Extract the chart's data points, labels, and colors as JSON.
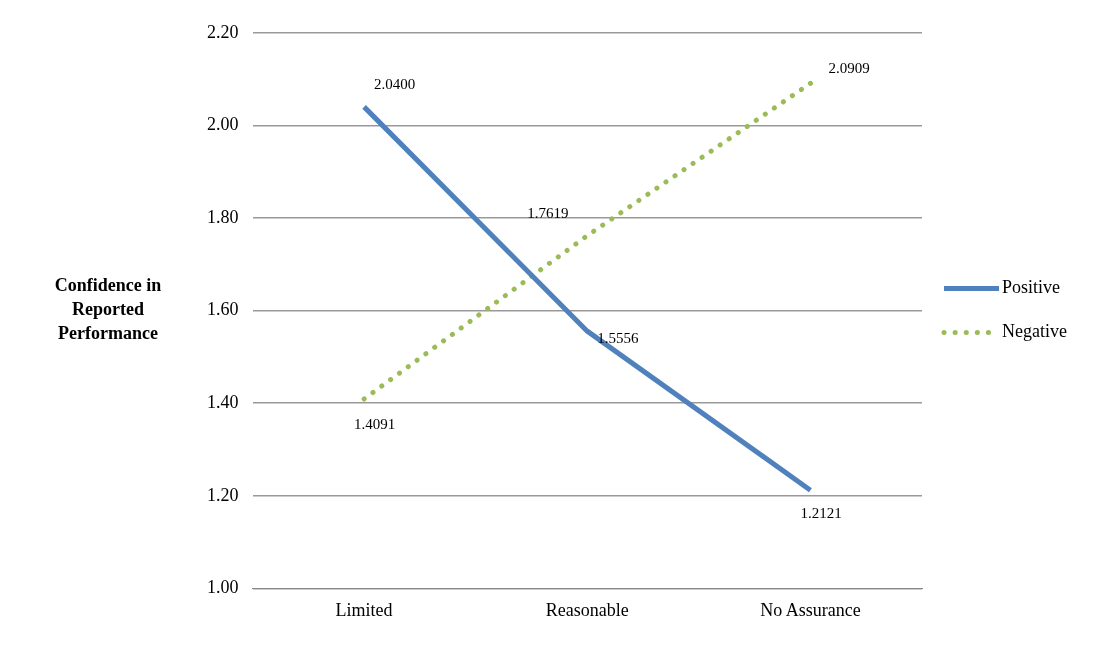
{
  "chart_data": {
    "type": "line",
    "ylabel": "Confidence in\nReported\nPerformance",
    "categories": [
      "Limited",
      "Reasonable",
      "No Assurance"
    ],
    "series": [
      {
        "name": "Positive",
        "color": "#4f81bd",
        "values": [
          2.04,
          1.5556,
          1.2121
        ],
        "value_labels": [
          "2.0400",
          "1.5556",
          "1.2121"
        ],
        "line_style": "solid"
      },
      {
        "name": "Negative",
        "color": "#9bbb59",
        "values": [
          1.4091,
          1.7619,
          2.0909
        ],
        "value_labels": [
          "1.4091",
          "1.7619",
          "2.0909"
        ],
        "line_style": "dotted"
      }
    ],
    "ylim": [
      1.0,
      2.2
    ],
    "yticks": [
      {
        "value": 1.0,
        "label": "1.00"
      },
      {
        "value": 1.2,
        "label": "1.20"
      },
      {
        "value": 1.4,
        "label": "1.40"
      },
      {
        "value": 1.6,
        "label": "1.60"
      },
      {
        "value": 1.8,
        "label": "1.80"
      },
      {
        "value": 2.0,
        "label": "2.00"
      },
      {
        "value": 2.2,
        "label": "2.20"
      }
    ],
    "grid": "y",
    "legend": "right",
    "marker": "none"
  }
}
